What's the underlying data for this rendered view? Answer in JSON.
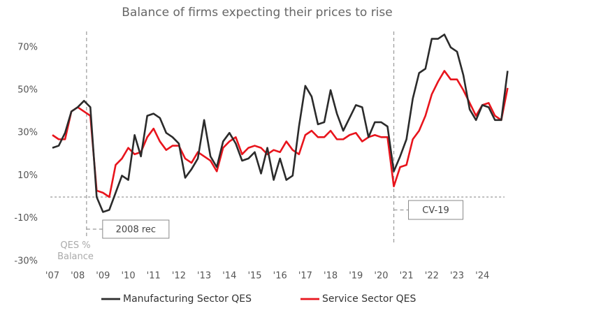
{
  "chart_data": {
    "type": "line",
    "title": "Balance of firms expecting their prices to rise",
    "y_label": "QES % Balance",
    "x": [
      2007,
      2007.25,
      2007.5,
      2007.75,
      2008,
      2008.25,
      2008.5,
      2008.75,
      2009,
      2009.25,
      2009.5,
      2009.75,
      2010,
      2010.25,
      2010.5,
      2010.75,
      2011,
      2011.25,
      2011.5,
      2011.75,
      2012,
      2012.25,
      2012.5,
      2012.75,
      2013,
      2013.25,
      2013.5,
      2013.75,
      2014,
      2014.25,
      2014.5,
      2014.75,
      2015,
      2015.25,
      2015.5,
      2015.75,
      2016,
      2016.25,
      2016.5,
      2016.75,
      2017,
      2017.25,
      2017.5,
      2017.75,
      2018,
      2018.25,
      2018.5,
      2018.75,
      2019,
      2019.25,
      2019.5,
      2019.75,
      2020,
      2020.25,
      2020.5,
      2020.75,
      2021,
      2021.25,
      2021.5,
      2021.75,
      2022,
      2022.25,
      2022.5,
      2022.75,
      2023,
      2023.25,
      2023.5,
      2023.75,
      2024,
      2024.25,
      2024.5,
      2024.75,
      2025
    ],
    "series": [
      {
        "name": "Manufacturing Sector QES",
        "color": "#2b2b2b",
        "values": [
          23,
          24,
          30,
          40,
          42,
          45,
          42,
          0,
          -7,
          -6,
          2,
          10,
          8,
          29,
          19,
          38,
          39,
          37,
          30,
          28,
          25,
          9,
          13,
          18,
          36,
          19,
          14,
          26,
          30,
          25,
          17,
          18,
          21,
          11,
          23,
          8,
          18,
          8,
          10,
          33,
          52,
          47,
          34,
          35,
          50,
          39,
          31,
          37,
          43,
          42,
          28,
          35,
          35,
          33,
          12,
          19,
          27,
          46,
          58,
          60,
          74,
          74,
          76,
          70,
          68,
          57,
          41,
          36,
          43,
          42,
          36,
          36,
          59
        ]
      },
      {
        "name": "Service Sector QES",
        "color": "#e8141c",
        "values": [
          29,
          27,
          27,
          40,
          42,
          40,
          38,
          3,
          2,
          0,
          15,
          18,
          23,
          20,
          21,
          28,
          32,
          26,
          22,
          24,
          24,
          18,
          16,
          21,
          19,
          17,
          12,
          23,
          26,
          28,
          20,
          23,
          24,
          23,
          20,
          22,
          21,
          26,
          22,
          20,
          29,
          31,
          28,
          28,
          31,
          27,
          27,
          29,
          30,
          26,
          28,
          29,
          28,
          28,
          5,
          14,
          15,
          27,
          31,
          38,
          48,
          54,
          59,
          55,
          55,
          50,
          44,
          38,
          43,
          44,
          38,
          36,
          51
        ]
      }
    ],
    "xlim": [
      2006.92,
      2025.1
    ],
    "xticks": [
      {
        "value": 2007,
        "label": "'07"
      },
      {
        "value": 2008,
        "label": "'08"
      },
      {
        "value": 2009,
        "label": "'09"
      },
      {
        "value": 2010,
        "label": "'10"
      },
      {
        "value": 2011,
        "label": "'11"
      },
      {
        "value": 2012,
        "label": "'12"
      },
      {
        "value": 2013,
        "label": "'13"
      },
      {
        "value": 2014,
        "label": "'14"
      },
      {
        "value": 2015,
        "label": "'15"
      },
      {
        "value": 2016,
        "label": "'16"
      },
      {
        "value": 2017,
        "label": "'17"
      },
      {
        "value": 2018,
        "label": "'18"
      },
      {
        "value": 2019,
        "label": "'19"
      },
      {
        "value": 2020,
        "label": "'20"
      },
      {
        "value": 2021,
        "label": "'21"
      },
      {
        "value": 2022,
        "label": "'22"
      },
      {
        "value": 2023,
        "label": "'23"
      },
      {
        "value": 2024,
        "label": "'24"
      }
    ],
    "ylim": [
      -30,
      78
    ],
    "yticks": [
      {
        "value": -30,
        "label": "-30%"
      },
      {
        "value": -10,
        "label": "-10%"
      },
      {
        "value": 10,
        "label": "10%"
      },
      {
        "value": 30,
        "label": "30%"
      },
      {
        "value": 50,
        "label": "50%"
      },
      {
        "value": 70,
        "label": "70%"
      }
    ],
    "reference_y": 0,
    "annotations": [
      {
        "text": "2008 rec",
        "x": 2008.35
      },
      {
        "text": "CV-19",
        "x": 2020.5
      }
    ],
    "grid": false,
    "legend": "bottom"
  }
}
